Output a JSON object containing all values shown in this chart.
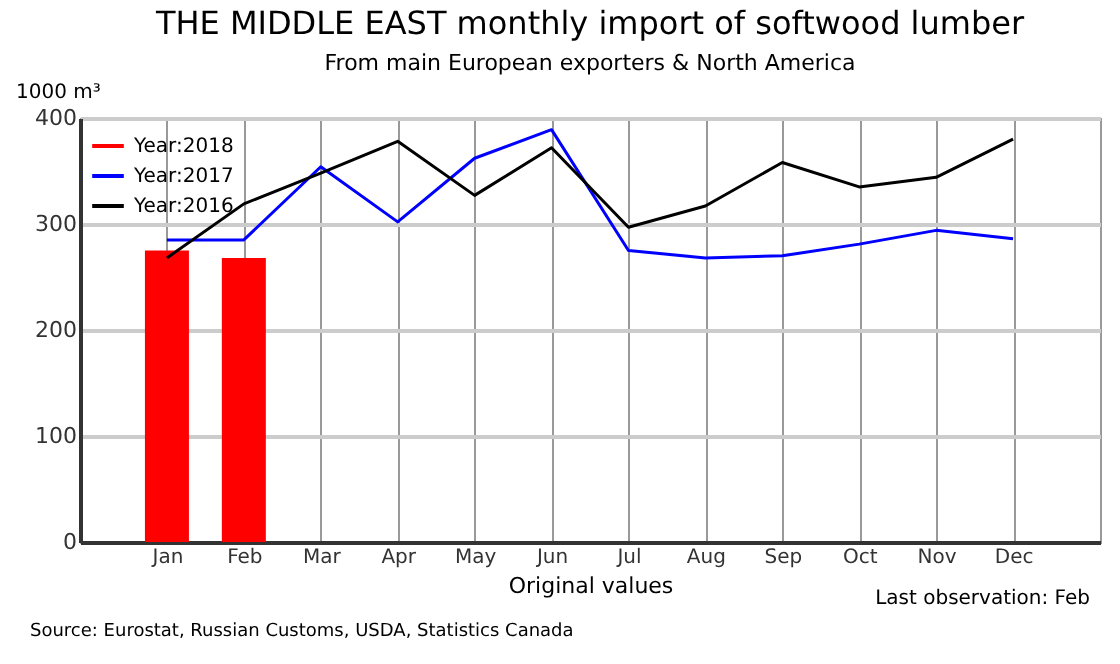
{
  "chart_data": {
    "type": "line",
    "title": "THE MIDDLE EAST monthly import of softwood lumber",
    "subtitle": "From main European exporters & North America",
    "ylabel": "1000 m³",
    "xlabel": "Original values",
    "categories": [
      "Jan",
      "Feb",
      "Mar",
      "Apr",
      "May",
      "Jun",
      "Jul",
      "Aug",
      "Sep",
      "Oct",
      "Nov",
      "Dec"
    ],
    "series": [
      {
        "name": "Year:2018",
        "type": "bar",
        "color": "#ff0000",
        "values": [
          275,
          268,
          null,
          null,
          null,
          null,
          null,
          null,
          null,
          null,
          null,
          null
        ]
      },
      {
        "name": "Year:2017",
        "color": "#0000ff",
        "values": [
          285,
          285,
          354,
          302,
          362,
          389,
          275,
          268,
          270,
          281,
          294,
          286
        ]
      },
      {
        "name": "Year:2016",
        "color": "#000000",
        "values": [
          268,
          319,
          348,
          378,
          327,
          372,
          297,
          317,
          358,
          335,
          344,
          380
        ]
      }
    ],
    "ylim": [
      0,
      400
    ],
    "yticks": [
      0,
      100,
      200,
      300,
      400
    ],
    "grid": true,
    "legend": "top left",
    "annotations": [
      "Last observation: Feb",
      "Source: Eurostat, Russian Customs, USDA, Statistics Canada"
    ]
  }
}
